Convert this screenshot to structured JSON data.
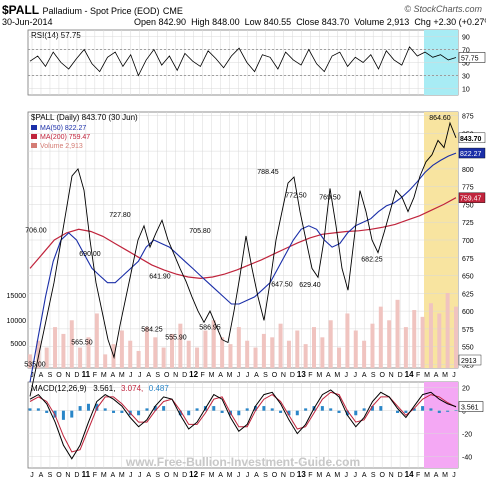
{
  "header": {
    "symbol": "$PALL",
    "name": "Palladium - Spot Price (EOD)",
    "exchange": "CME",
    "date": "30-Jun-2014",
    "open": "Open 842.90",
    "high": "High 848.00",
    "low": "Low 840.55",
    "close": "Close 843.70",
    "volume": "Volume 2,913",
    "chg": "Chg +2.30 (+0.27%)",
    "brand": "© StockCharts.com"
  },
  "watermark": "www.Free-Bullion-Investment-Guide.com",
  "colors": {
    "price": "#000000",
    "ma50": "#1a2ea8",
    "ma200": "#c0243c",
    "volume": "#f0c4c0",
    "rsi_highlight": "#a8ecf4",
    "price_highlight": "#f8e4a0",
    "macd_highlight": "#f4a8f4",
    "grid": "#d8d8d8",
    "macd_hist": "#2a86c8",
    "signal": "#c0243c"
  },
  "chart_data": [
    {
      "panel": "rsi",
      "type": "line",
      "label": "RSI(14) 57.75",
      "ylim": [
        0,
        100
      ],
      "yticks": [
        "90",
        "70",
        "50",
        "30",
        "10"
      ],
      "current": "57.75",
      "values": [
        52,
        60,
        44,
        66,
        50,
        40,
        56,
        70,
        48,
        36,
        58,
        66,
        44,
        62,
        30,
        54,
        70,
        46,
        60,
        38,
        64,
        52,
        44,
        68,
        56,
        42,
        60,
        72,
        50,
        36,
        62,
        58,
        40,
        66,
        54,
        46,
        70,
        48,
        36,
        60,
        66,
        44,
        58,
        50,
        62,
        40,
        68,
        54,
        46,
        74,
        60,
        66,
        58,
        62,
        54,
        57.75
      ]
    },
    {
      "panel": "price",
      "type": "line",
      "label": "$PALL (Daily) 843.70 (30 Jun)",
      "legend": [
        "MA(50) 822.27",
        "MA(200) 759.47",
        "Volume 2,913"
      ],
      "ylim": [
        520,
        880
      ],
      "yticks": [
        "875",
        "850",
        "825",
        "800",
        "775",
        "750",
        "725",
        "700",
        "675",
        "650",
        "625",
        "600",
        "575",
        "550",
        "525"
      ],
      "volume_ticks": [
        "15000",
        "10000",
        "5000"
      ],
      "x_labels": [
        "J",
        "A",
        "S",
        "O",
        "N",
        "D",
        "11",
        "F",
        "M",
        "A",
        "M",
        "J",
        "J",
        "A",
        "S",
        "O",
        "N",
        "D",
        "12",
        "F",
        "M",
        "A",
        "M",
        "J",
        "J",
        "A",
        "S",
        "O",
        "N",
        "D",
        "13",
        "F",
        "M",
        "A",
        "M",
        "J",
        "J",
        "A",
        "S",
        "O",
        "N",
        "D",
        "14",
        "F",
        "M",
        "A",
        "M",
        "J"
      ],
      "price_labels": {
        "current": "843.70",
        "ma50": "822.27",
        "ma200": "759.47",
        "volume": "2913"
      },
      "annotations": [
        {
          "text": "535.00",
          "value": 535
        },
        {
          "text": "706.00",
          "value": 706
        },
        {
          "text": "565.50",
          "value": 565.5
        },
        {
          "text": "690.00",
          "value": 690
        },
        {
          "text": "727.80",
          "value": 727.8
        },
        {
          "text": "641.90",
          "value": 641.9
        },
        {
          "text": "584.25",
          "value": 584.25
        },
        {
          "text": "555.90",
          "value": 555.9
        },
        {
          "text": "705.80",
          "value": 705.8
        },
        {
          "text": "586.95",
          "value": 586.95
        },
        {
          "text": "788.45",
          "value": 788.45
        },
        {
          "text": "647.50",
          "value": 647.5
        },
        {
          "text": "772.50",
          "value": 772.5
        },
        {
          "text": "629.40",
          "value": 629.4
        },
        {
          "text": "769.50",
          "value": 769.5
        },
        {
          "text": "682.25",
          "value": 682.25
        },
        {
          "text": "864.60",
          "value": 864.6
        }
      ],
      "price_series": [
        480,
        520,
        560,
        600,
        640,
        690,
        740,
        790,
        800,
        770,
        700,
        640,
        600,
        560,
        535,
        580,
        620,
        660,
        700,
        720,
        690,
        710,
        727.8,
        700,
        680,
        660,
        641.9,
        620,
        600,
        584.25,
        600,
        580,
        560,
        555.9,
        600,
        650,
        705.8,
        660,
        620,
        586.95,
        640,
        700,
        740,
        780,
        788.45,
        740,
        700,
        660,
        647.5,
        700,
        772.5,
        720,
        660,
        629.4,
        700,
        769.5,
        740,
        700,
        682.25,
        710,
        740,
        770,
        760,
        740,
        760,
        790,
        810,
        820,
        840,
        830,
        864.6,
        843.7
      ],
      "ma50": [
        500,
        560,
        620,
        670,
        700,
        710,
        700,
        680,
        660,
        650,
        640,
        640,
        650,
        660,
        670,
        690,
        700,
        695,
        690,
        680,
        670,
        660,
        650,
        640,
        630,
        620,
        610,
        610,
        615,
        620,
        630,
        640,
        660,
        680,
        700,
        715,
        720,
        715,
        700,
        690,
        695,
        710,
        720,
        725,
        730,
        740,
        748,
        752,
        760,
        770,
        782,
        795,
        805,
        812,
        818,
        822.27
      ],
      "ma200": [
        660,
        680,
        700,
        710,
        715,
        712,
        705,
        695,
        685,
        675,
        665,
        658,
        652,
        648,
        646,
        648,
        652,
        658,
        665,
        672,
        680,
        688,
        696,
        703,
        708,
        710,
        712,
        713,
        715,
        718,
        722,
        728,
        734,
        742,
        750,
        759.47
      ],
      "volume": [
        20,
        40,
        30,
        60,
        50,
        70,
        30,
        45,
        80,
        20,
        35,
        55,
        40,
        25,
        60,
        45,
        30,
        50,
        65,
        40,
        30,
        55,
        70,
        45,
        35,
        60,
        40,
        30,
        50,
        45,
        65,
        40,
        55,
        35,
        60,
        45,
        70,
        30,
        80,
        55,
        40,
        65,
        90,
        70,
        100,
        60,
        85,
        75,
        95,
        80,
        110,
        90
      ]
    },
    {
      "panel": "macd",
      "type": "line",
      "label": "MACD(12,26,9) 3.561, 3.074, 0.487",
      "legend": [
        "MACD(12,26,9)",
        "3.561",
        "3.074",
        "0.487"
      ],
      "ylim": [
        -50,
        25
      ],
      "yticks": [
        "20",
        "0",
        "-20",
        "-40"
      ],
      "current": "3.561",
      "macd": [
        10,
        14,
        6,
        -10,
        -30,
        -42,
        -30,
        -10,
        8,
        14,
        10,
        4,
        -6,
        -14,
        -8,
        4,
        12,
        10,
        -4,
        -16,
        -10,
        2,
        14,
        10,
        -6,
        -18,
        -12,
        4,
        14,
        16,
        6,
        -8,
        -20,
        -12,
        2,
        14,
        18,
        12,
        -4,
        -14,
        -6,
        8,
        16,
        12,
        2,
        -6,
        4,
        14,
        16,
        10,
        6,
        3.561
      ],
      "signal": [
        8,
        12,
        8,
        -4,
        -22,
        -36,
        -34,
        -16,
        2,
        12,
        12,
        6,
        -2,
        -10,
        -10,
        0,
        8,
        10,
        0,
        -12,
        -12,
        -2,
        10,
        12,
        -2,
        -14,
        -14,
        0,
        10,
        14,
        8,
        -4,
        -16,
        -14,
        -2,
        10,
        16,
        14,
        0,
        -10,
        -8,
        4,
        12,
        12,
        4,
        -4,
        2,
        10,
        14,
        12,
        7,
        3.074
      ]
    }
  ],
  "brand_marks": {
    "footer_brand": "© StockCharts.com"
  }
}
